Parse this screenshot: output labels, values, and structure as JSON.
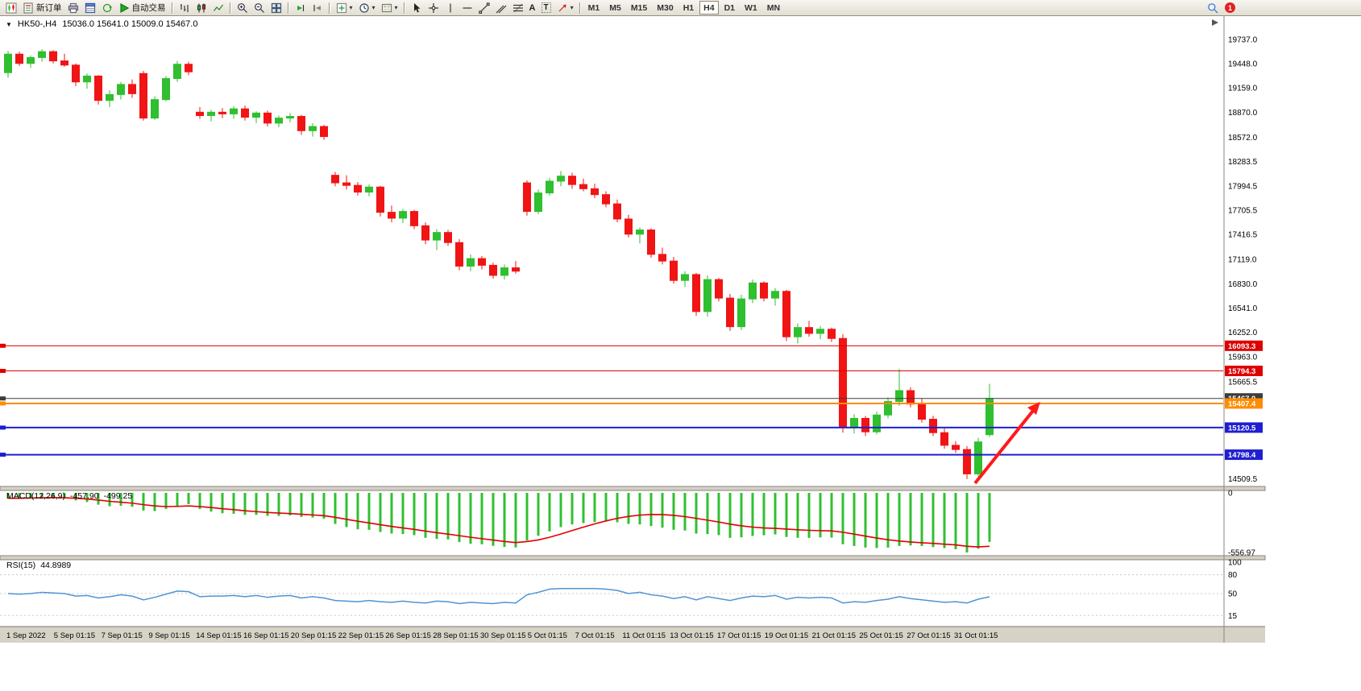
{
  "toolbar": {
    "new_order_label": "新订单",
    "autotrading_label": "自动交易",
    "text_tool_label": "A",
    "label_tool_label": "T",
    "timeframes": [
      "M1",
      "M5",
      "M15",
      "M30",
      "H1",
      "H4",
      "D1",
      "W1",
      "MN"
    ],
    "active_timeframe": "H4",
    "notification_count": "1"
  },
  "chart_data": {
    "type": "candlestick",
    "symbol_period": "HK50-,H4",
    "ohlc_text": "15036.0 15641.0 15009.0 15467.0",
    "open": "15036.0",
    "high": "15641.0",
    "low": "15009.0",
    "close": "15467.0",
    "price_range": [
      14440,
      19840
    ],
    "bull_color": "#2fbf2f",
    "bear_color": "#f01414",
    "price_axis_labels": [
      "19737.0",
      "19448.0",
      "19159.0",
      "18870.0",
      "18572.0",
      "18283.5",
      "17994.5",
      "17705.5",
      "17416.5",
      "17119.0",
      "16830.0",
      "16541.0",
      "16252.0",
      "15963.0",
      "15665.5",
      "14509.5"
    ],
    "time_axis_labels": [
      "1 Sep 2022",
      "5 Sep 01:15",
      "7 Sep 01:15",
      "9 Sep 01:15",
      "14 Sep 01:15",
      "16 Sep 01:15",
      "20 Sep 01:15",
      "22 Sep 01:15",
      "26 Sep 01:15",
      "28 Sep 01:15",
      "30 Sep 01:15",
      "5 Oct 01:15",
      "7 Oct 01:15",
      "11 Oct 01:15",
      "13 Oct 01:15",
      "17 Oct 01:15",
      "19 Oct 01:15",
      "21 Oct 01:15",
      "25 Oct 01:15",
      "27 Oct 01:15",
      "31 Oct 01:15"
    ],
    "candles": [
      [
        19340,
        19600,
        19280,
        19560
      ],
      [
        19560,
        19590,
        19420,
        19450
      ],
      [
        19450,
        19545,
        19400,
        19520
      ],
      [
        19520,
        19620,
        19470,
        19590
      ],
      [
        19590,
        19605,
        19450,
        19480
      ],
      [
        19480,
        19565,
        19410,
        19430
      ],
      [
        19430,
        19450,
        19180,
        19230
      ],
      [
        19230,
        19330,
        19150,
        19300
      ],
      [
        19300,
        19310,
        18960,
        19010
      ],
      [
        19010,
        19130,
        18930,
        19080
      ],
      [
        19080,
        19230,
        19020,
        19200
      ],
      [
        19200,
        19260,
        19040,
        19090
      ],
      [
        19330,
        19360,
        18770,
        18800
      ],
      [
        18800,
        19060,
        18780,
        19020
      ],
      [
        19020,
        19300,
        19000,
        19270
      ],
      [
        19270,
        19480,
        19230,
        19440
      ],
      [
        19440,
        19470,
        19310,
        19350
      ],
      [
        18870,
        18930,
        18790,
        18830
      ],
      [
        18830,
        18900,
        18760,
        18870
      ],
      [
        18870,
        18920,
        18800,
        18850
      ],
      [
        18850,
        18940,
        18790,
        18910
      ],
      [
        18910,
        18950,
        18770,
        18810
      ],
      [
        18810,
        18880,
        18740,
        18860
      ],
      [
        18860,
        18890,
        18700,
        18740
      ],
      [
        18740,
        18830,
        18690,
        18800
      ],
      [
        18800,
        18860,
        18750,
        18820
      ],
      [
        18820,
        18840,
        18600,
        18650
      ],
      [
        18650,
        18740,
        18580,
        18700
      ],
      [
        18700,
        18720,
        18540,
        18580
      ],
      [
        18120,
        18160,
        17990,
        18030
      ],
      [
        18030,
        18120,
        17950,
        18000
      ],
      [
        18000,
        18040,
        17880,
        17920
      ],
      [
        17920,
        18010,
        17870,
        17980
      ],
      [
        17980,
        17995,
        17630,
        17680
      ],
      [
        17680,
        17760,
        17560,
        17610
      ],
      [
        17610,
        17720,
        17550,
        17690
      ],
      [
        17690,
        17710,
        17480,
        17520
      ],
      [
        17520,
        17560,
        17300,
        17350
      ],
      [
        17350,
        17480,
        17230,
        17440
      ],
      [
        17440,
        17470,
        17280,
        17320
      ],
      [
        17320,
        17360,
        16990,
        17040
      ],
      [
        17040,
        17180,
        16980,
        17130
      ],
      [
        17130,
        17160,
        17000,
        17050
      ],
      [
        17050,
        17080,
        16890,
        16930
      ],
      [
        16930,
        17060,
        16880,
        17020
      ],
      [
        17020,
        17100,
        16950,
        16980
      ],
      [
        18030,
        18060,
        17640,
        17690
      ],
      [
        17690,
        17950,
        17660,
        17910
      ],
      [
        17910,
        18090,
        17880,
        18050
      ],
      [
        18050,
        18170,
        17990,
        18110
      ],
      [
        18110,
        18150,
        17960,
        18010
      ],
      [
        18010,
        18080,
        17930,
        17960
      ],
      [
        17960,
        18020,
        17850,
        17890
      ],
      [
        17890,
        17930,
        17740,
        17780
      ],
      [
        17780,
        17830,
        17560,
        17600
      ],
      [
        17600,
        17650,
        17380,
        17420
      ],
      [
        17420,
        17500,
        17310,
        17470
      ],
      [
        17470,
        17490,
        17140,
        17180
      ],
      [
        17180,
        17260,
        17060,
        17100
      ],
      [
        17100,
        17150,
        16830,
        16870
      ],
      [
        16870,
        16980,
        16790,
        16940
      ],
      [
        16940,
        16960,
        16450,
        16500
      ],
      [
        16500,
        16930,
        16440,
        16880
      ],
      [
        16880,
        16900,
        16620,
        16660
      ],
      [
        16660,
        16710,
        16270,
        16320
      ],
      [
        16320,
        16700,
        16280,
        16650
      ],
      [
        16650,
        16880,
        16600,
        16840
      ],
      [
        16840,
        16860,
        16620,
        16660
      ],
      [
        16660,
        16780,
        16570,
        16740
      ],
      [
        16740,
        16760,
        16150,
        16200
      ],
      [
        16200,
        16360,
        16120,
        16310
      ],
      [
        16310,
        16390,
        16200,
        16240
      ],
      [
        16240,
        16330,
        16170,
        16290
      ],
      [
        16290,
        16310,
        16140,
        16180
      ],
      [
        16180,
        16230,
        15060,
        15120
      ],
      [
        15120,
        15280,
        15050,
        15230
      ],
      [
        15230,
        15260,
        15020,
        15070
      ],
      [
        15070,
        15310,
        15040,
        15270
      ],
      [
        15270,
        15480,
        15230,
        15430
      ],
      [
        15430,
        15820,
        15380,
        15560
      ],
      [
        15560,
        15600,
        15360,
        15400
      ],
      [
        15400,
        15470,
        15180,
        15220
      ],
      [
        15220,
        15260,
        15020,
        15060
      ],
      [
        15060,
        15110,
        14870,
        14910
      ],
      [
        14910,
        14960,
        14820,
        14860
      ],
      [
        14860,
        14900,
        14510,
        14570
      ],
      [
        14570,
        15000,
        14540,
        14950
      ],
      [
        15036,
        15641,
        15009,
        15467
      ]
    ],
    "price_lines": [
      {
        "value": 16093.3,
        "label": "16093.3",
        "color": "#dd0000",
        "width": 1
      },
      {
        "value": 15794.3,
        "label": "15794.3",
        "color": "#dd0000",
        "width": 1
      },
      {
        "value": 15467.0,
        "label": "15467.0",
        "color": "#3c3c3c",
        "width": 1
      },
      {
        "value": 15407.4,
        "label": "15407.4",
        "color": "#ff8c00",
        "width": 2
      },
      {
        "value": 15120.5,
        "label": "15120.5",
        "color": "#1f1fd0",
        "width": 2
      },
      {
        "value": 14798.4,
        "label": "14798.4",
        "color": "#1f1fd0",
        "width": 2
      }
    ],
    "macd": {
      "label": "MACD(12,26,9)",
      "main_value": "-457.90",
      "signal_value": "-499.25",
      "axis_top": "0",
      "axis_bottom": "-556.97",
      "min": -556.97,
      "hist_color": "#30c030",
      "signal_color": "#e00000",
      "histogram": [
        -55,
        -48,
        -45,
        -40,
        -42,
        -48,
        -70,
        -85,
        -110,
        -125,
        -120,
        -130,
        -165,
        -170,
        -150,
        -120,
        -105,
        -150,
        -175,
        -190,
        -195,
        -205,
        -205,
        -215,
        -215,
        -210,
        -225,
        -230,
        -240,
        -290,
        -320,
        -340,
        -345,
        -365,
        -380,
        -385,
        -395,
        -420,
        -430,
        -435,
        -460,
        -475,
        -480,
        -495,
        -505,
        -510,
        -445,
        -400,
        -360,
        -320,
        -295,
        -282,
        -272,
        -268,
        -275,
        -290,
        -295,
        -310,
        -325,
        -345,
        -352,
        -380,
        -385,
        -395,
        -420,
        -415,
        -402,
        -396,
        -388,
        -412,
        -420,
        -421,
        -416,
        -418,
        -480,
        -496,
        -511,
        -516,
        -511,
        -496,
        -491,
        -497,
        -506,
        -516,
        -526,
        -556.97,
        -521,
        -457.9
      ],
      "signal": [
        -50,
        -50,
        -48,
        -46,
        -45,
        -46,
        -50,
        -57,
        -67,
        -79,
        -87,
        -96,
        -110,
        -122,
        -128,
        -126,
        -122,
        -128,
        -137,
        -148,
        -157,
        -167,
        -175,
        -183,
        -189,
        -193,
        -200,
        -206,
        -213,
        -228,
        -247,
        -265,
        -281,
        -298,
        -314,
        -328,
        -341,
        -357,
        -372,
        -385,
        -400,
        -415,
        -428,
        -441,
        -454,
        -464,
        -455,
        -440,
        -415,
        -385,
        -352,
        -320,
        -290,
        -262,
        -238,
        -220,
        -208,
        -202,
        -203,
        -210,
        -222,
        -238,
        -255,
        -272,
        -292,
        -308,
        -320,
        -328,
        -332,
        -338,
        -345,
        -350,
        -353,
        -355,
        -368,
        -385,
        -404,
        -422,
        -438,
        -450,
        -459,
        -466,
        -472,
        -479,
        -486,
        -499,
        -505,
        -499.25
      ]
    },
    "rsi": {
      "label": "RSI(15)",
      "value": "44.8989",
      "axis_labels": [
        "100",
        "80",
        "50",
        "15"
      ],
      "levels": [
        80,
        50,
        15
      ],
      "range": [
        0,
        100
      ],
      "color": "#4f94d4",
      "values": [
        50,
        49,
        50,
        52,
        51,
        50,
        46,
        47,
        43,
        45,
        48,
        46,
        40,
        44,
        49,
        54,
        53,
        45,
        46,
        46,
        47,
        45,
        47,
        44,
        46,
        47,
        43,
        45,
        43,
        39,
        38,
        37,
        39,
        37,
        36,
        38,
        36,
        35,
        38,
        37,
        34,
        36,
        35,
        34,
        36,
        35,
        48,
        52,
        57,
        58,
        58,
        58,
        58,
        57,
        55,
        50,
        52,
        48,
        46,
        42,
        45,
        40,
        45,
        42,
        39,
        43,
        46,
        45,
        47,
        41,
        44,
        43,
        44,
        43,
        35,
        37,
        36,
        39,
        41,
        45,
        42,
        40,
        38,
        36,
        37,
        35,
        41,
        44.9
      ]
    },
    "arrow_annotation": {
      "color": "#ff1a1a"
    }
  }
}
